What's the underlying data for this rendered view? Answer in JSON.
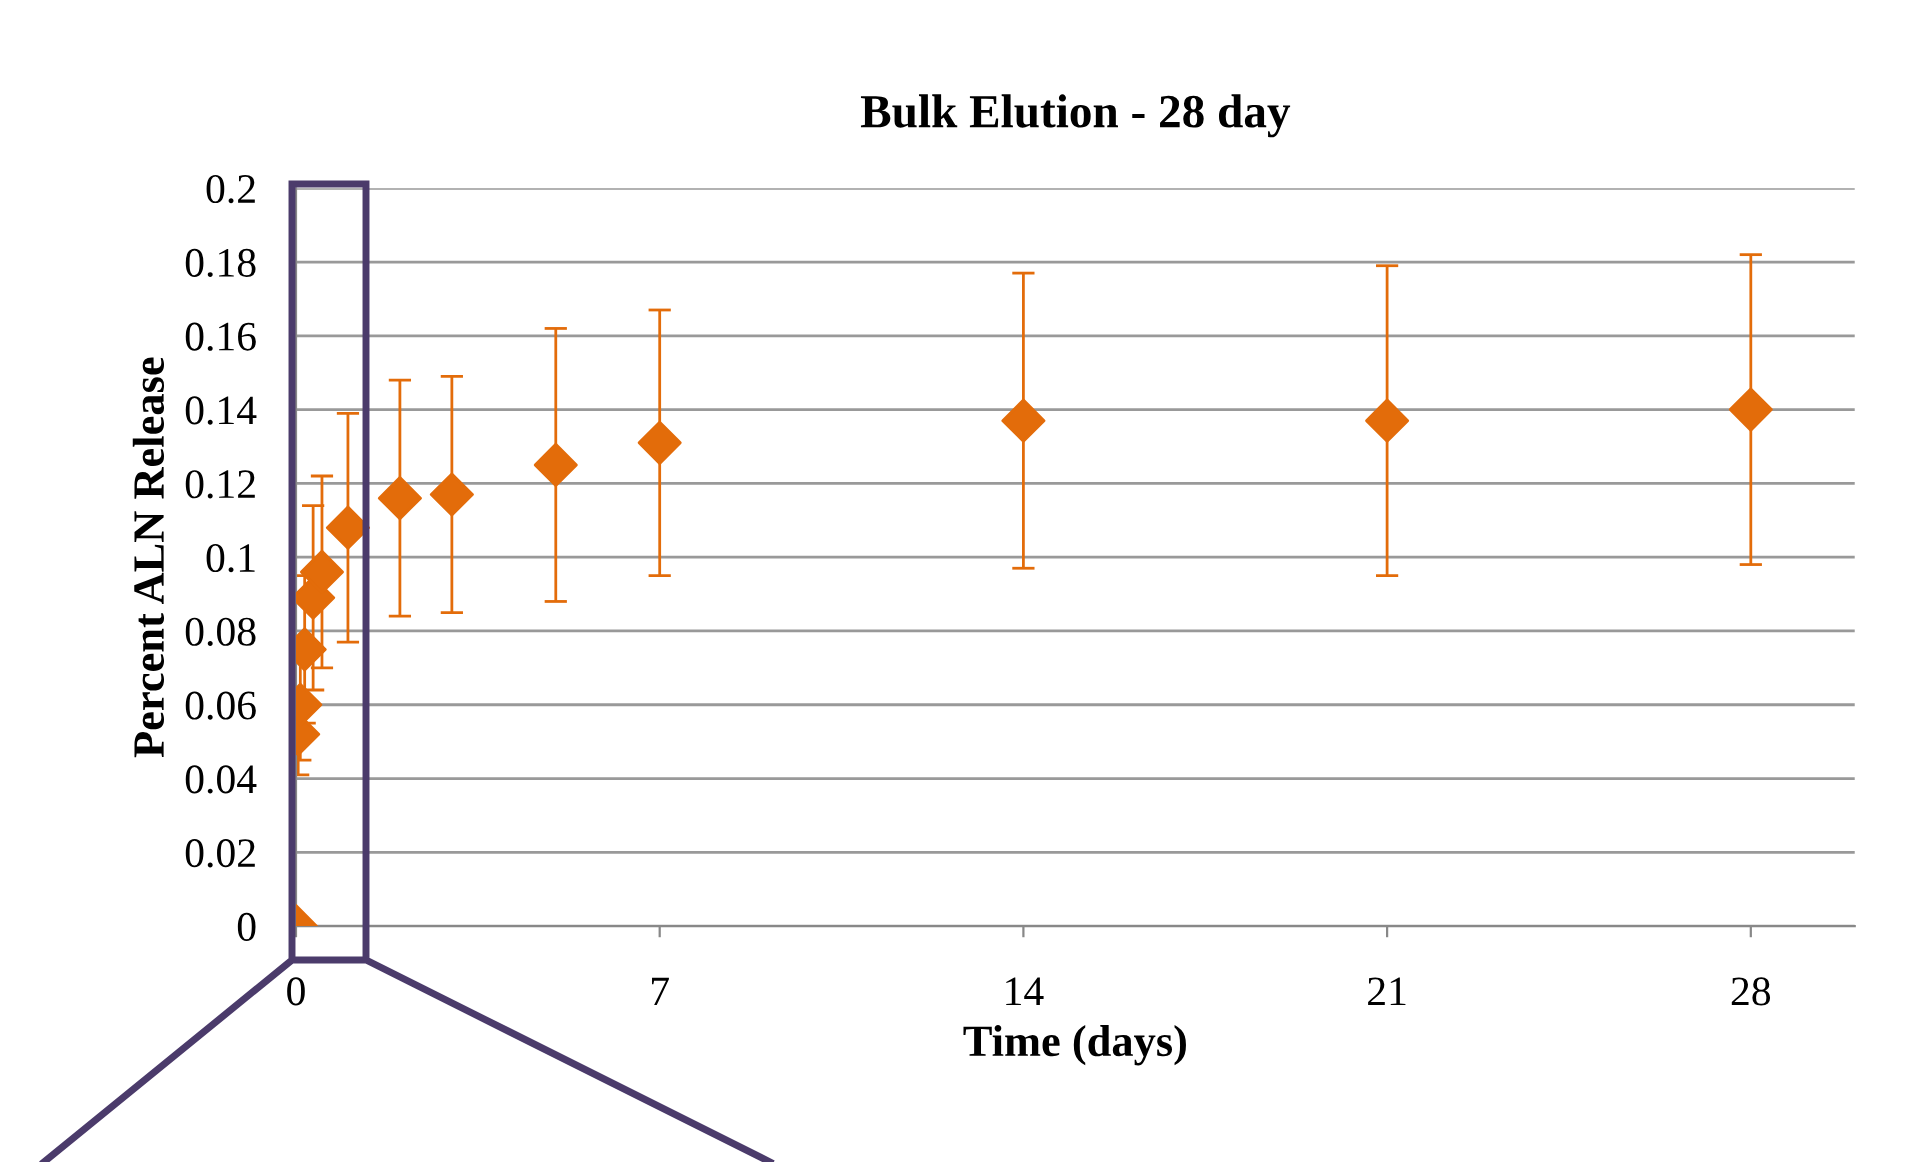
{
  "chart_data": {
    "type": "scatter",
    "title": "Bulk Elution - 28 day",
    "xlabel": "Time (days)",
    "ylabel": "Percent ALN Release",
    "x": [
      0,
      0.042,
      0.083,
      0.167,
      0.33,
      0.5,
      1,
      2,
      3,
      5,
      7,
      14,
      21,
      28
    ],
    "series": [
      {
        "color": "#e36c0a",
        "values": [
          0,
          0.052,
          0.06,
          0.075,
          0.089,
          0.096,
          0.108,
          0.116,
          0.117,
          0.125,
          0.131,
          0.137,
          0.137,
          0.14
        ],
        "errors": [
          null,
          0.011,
          0.015,
          0.02,
          0.025,
          0.026,
          0.031,
          0.032,
          0.032,
          0.037,
          0.036,
          0.04,
          0.042,
          0.042
        ]
      }
    ],
    "xlim": [
      0,
      30
    ],
    "xticks": [
      0,
      7,
      14,
      21,
      28
    ],
    "ylim": [
      0,
      0.2
    ],
    "yticks": [
      0,
      0.02,
      0.04,
      0.06,
      0.08,
      0.1,
      0.12,
      0.14,
      0.16,
      0.18,
      0.2
    ],
    "grid": "y",
    "marker": "diamond"
  }
}
